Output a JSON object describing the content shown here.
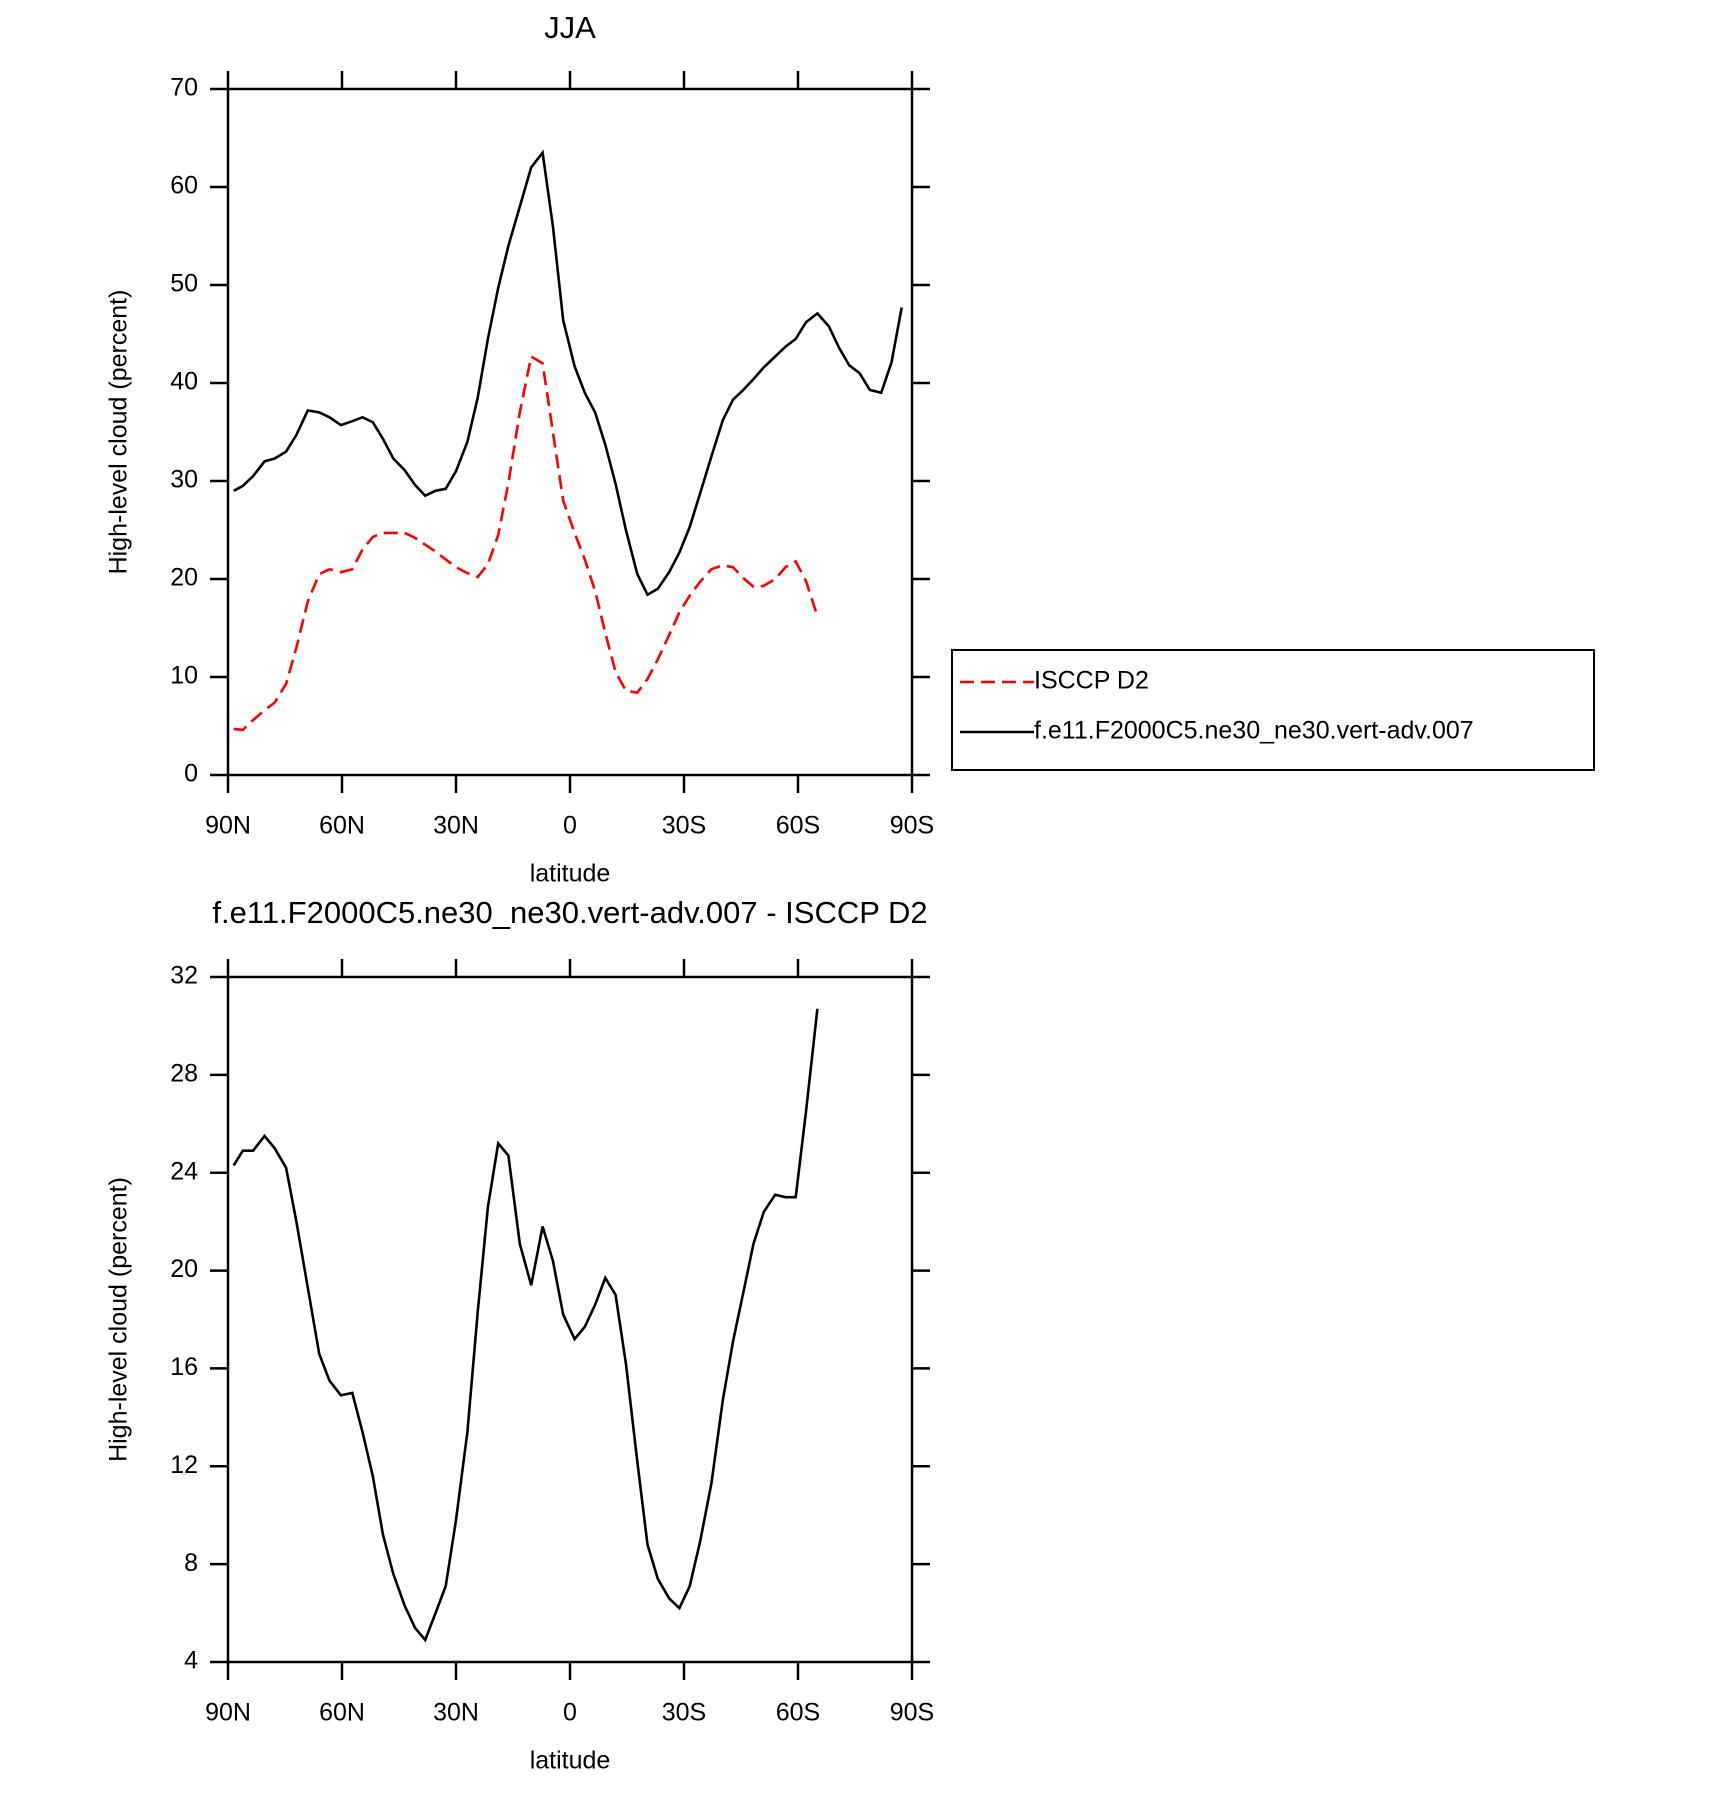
{
  "chart_data": [
    {
      "type": "line",
      "title": "JJA",
      "x_label": "latitude",
      "y_label": "High-level cloud (percent)",
      "x": [
        88.5,
        86.1,
        83.4,
        80.4,
        77.7,
        74.7,
        72,
        69,
        66,
        63.3,
        60.3,
        57.3,
        54.6,
        51.9,
        49.2,
        46.5,
        43.5,
        40.8,
        38.1,
        35.4,
        32.7,
        30,
        27,
        24.3,
        21.6,
        18.9,
        16.2,
        13.2,
        10.2,
        7.2,
        4.5,
        1.8,
        -1.2,
        -3.9,
        -6.6,
        -9.3,
        -12,
        -14.7,
        -17.7,
        -20.4,
        -23.1,
        -26.1,
        -28.8,
        -31.5,
        -34.2,
        -37.2,
        -40.2,
        -42.9,
        -45.6,
        -48.3,
        -51,
        -54,
        -56.7,
        -59.4,
        -62.1,
        -65.1,
        -68.1,
        -70.8,
        -73.5,
        -76.2,
        -78.9,
        -81.9,
        -84.6,
        -87.3
      ],
      "series": [
        {
          "name": "ISCCP D2",
          "color": "#ff0000",
          "line_style": "dashed",
          "values": [
            4.7,
            4.6,
            5.6,
            6.6,
            7.4,
            9.3,
            13,
            17.7,
            20.5,
            21,
            20.7,
            21,
            23,
            24.3,
            24.7,
            24.7,
            24.7,
            24.2,
            23.5,
            22.8,
            22,
            21.2,
            20.6,
            20.2,
            21.5,
            24.5,
            29.8,
            37,
            42.7,
            42,
            35,
            28,
            24.7,
            22,
            18.8,
            14.5,
            10.5,
            8.6,
            8.4,
            9.8,
            11.8,
            14.3,
            16.6,
            18.3,
            19.7,
            21,
            21.4,
            21.2,
            20.1,
            19.2,
            19.3,
            20,
            21.2,
            21.8,
            19.8,
            16.2,
            null,
            null,
            null,
            null,
            null,
            null,
            null,
            null
          ]
        },
        {
          "name": "f.e11.F2000C5.ne30_ne30.vert-adv.007",
          "color": "#000000",
          "line_style": "solid",
          "values": [
            29,
            29.5,
            30.5,
            32,
            32.3,
            33,
            34.7,
            37.2,
            37,
            36.5,
            35.7,
            36.1,
            36.5,
            36,
            34.3,
            32.3,
            31.1,
            29.6,
            28.5,
            29,
            29.2,
            31,
            34,
            38.5,
            44.5,
            49.7,
            54,
            58,
            62,
            63.5,
            56,
            46.4,
            41.7,
            39,
            37,
            33.7,
            29.7,
            25,
            20.5,
            18.4,
            19,
            20.7,
            22.7,
            25.3,
            28.7,
            32.5,
            36.2,
            38.3,
            39.3,
            40.4,
            41.6,
            42.7,
            43.7,
            44.5,
            46.2,
            47.1,
            45.8,
            43.6,
            41.8,
            41,
            39.3,
            39,
            42.1,
            47.7
          ]
        }
      ],
      "xlim": [
        90,
        -90
      ],
      "xticks": [
        {
          "value": 90,
          "label": "90N"
        },
        {
          "value": 60,
          "label": "60N"
        },
        {
          "value": 30,
          "label": "30N"
        },
        0,
        {
          "value": -30,
          "label": "30S"
        },
        {
          "value": -60,
          "label": "60S"
        },
        {
          "value": -90,
          "label": "90S"
        }
      ],
      "ylim": [
        0,
        70
      ],
      "yticks": [
        0,
        10,
        20,
        30,
        40,
        50,
        60,
        70
      ],
      "legend": "right"
    },
    {
      "type": "line",
      "title": "f.e11.F2000C5.ne30_ne30.vert-adv.007 - ISCCP D2",
      "x_label": "latitude",
      "y_label": "High-level cloud (percent)",
      "x": [
        88.5,
        86.1,
        83.4,
        80.4,
        77.7,
        74.7,
        72,
        69,
        66,
        63.3,
        60.3,
        57.3,
        54.6,
        51.9,
        49.2,
        46.5,
        43.5,
        40.8,
        38.1,
        35.4,
        32.7,
        30,
        27,
        24.3,
        21.6,
        18.9,
        16.2,
        13.2,
        10.2,
        7.2,
        4.5,
        1.8,
        -1.2,
        -3.9,
        -6.6,
        -9.3,
        -12,
        -14.7,
        -17.7,
        -20.4,
        -23.1,
        -26.1,
        -28.8,
        -31.5,
        -34.2,
        -37.2,
        -40.2,
        -42.9,
        -45.6,
        -48.3,
        -51,
        -54,
        -56.7,
        -59.4,
        -62.1,
        -65.1
      ],
      "series": [
        {
          "color": "#000000",
          "line_style": "solid",
          "values": [
            24.3,
            24.9,
            24.9,
            25.5,
            25,
            24.2,
            22,
            19.3,
            16.6,
            15.5,
            14.9,
            15,
            13.4,
            11.6,
            9.2,
            7.6,
            6.3,
            5.4,
            4.9,
            6,
            7.1,
            9.8,
            13.4,
            18.3,
            22.6,
            25.2,
            24.7,
            21.1,
            19.4,
            21.8,
            20.4,
            18.2,
            17.2,
            17.7,
            18.6,
            19.7,
            19,
            16.2,
            12.2,
            8.8,
            7.4,
            6.6,
            6.2,
            7.1,
            8.9,
            11.3,
            14.7,
            17.1,
            19.1,
            21.1,
            22.4,
            23.1,
            23,
            23,
            26.5,
            30.7
          ]
        }
      ],
      "xlim": [
        90,
        -90
      ],
      "xticks": [
        {
          "value": 90,
          "label": "90N"
        },
        {
          "value": 60,
          "label": "60N"
        },
        {
          "value": 30,
          "label": "30N"
        },
        0,
        {
          "value": -30,
          "label": "30S"
        },
        {
          "value": -60,
          "label": "60S"
        },
        {
          "value": -90,
          "label": "90S"
        }
      ],
      "ylim": [
        4,
        32
      ],
      "yticks": [
        4,
        8,
        12,
        16,
        20,
        24,
        28,
        32
      ]
    }
  ]
}
